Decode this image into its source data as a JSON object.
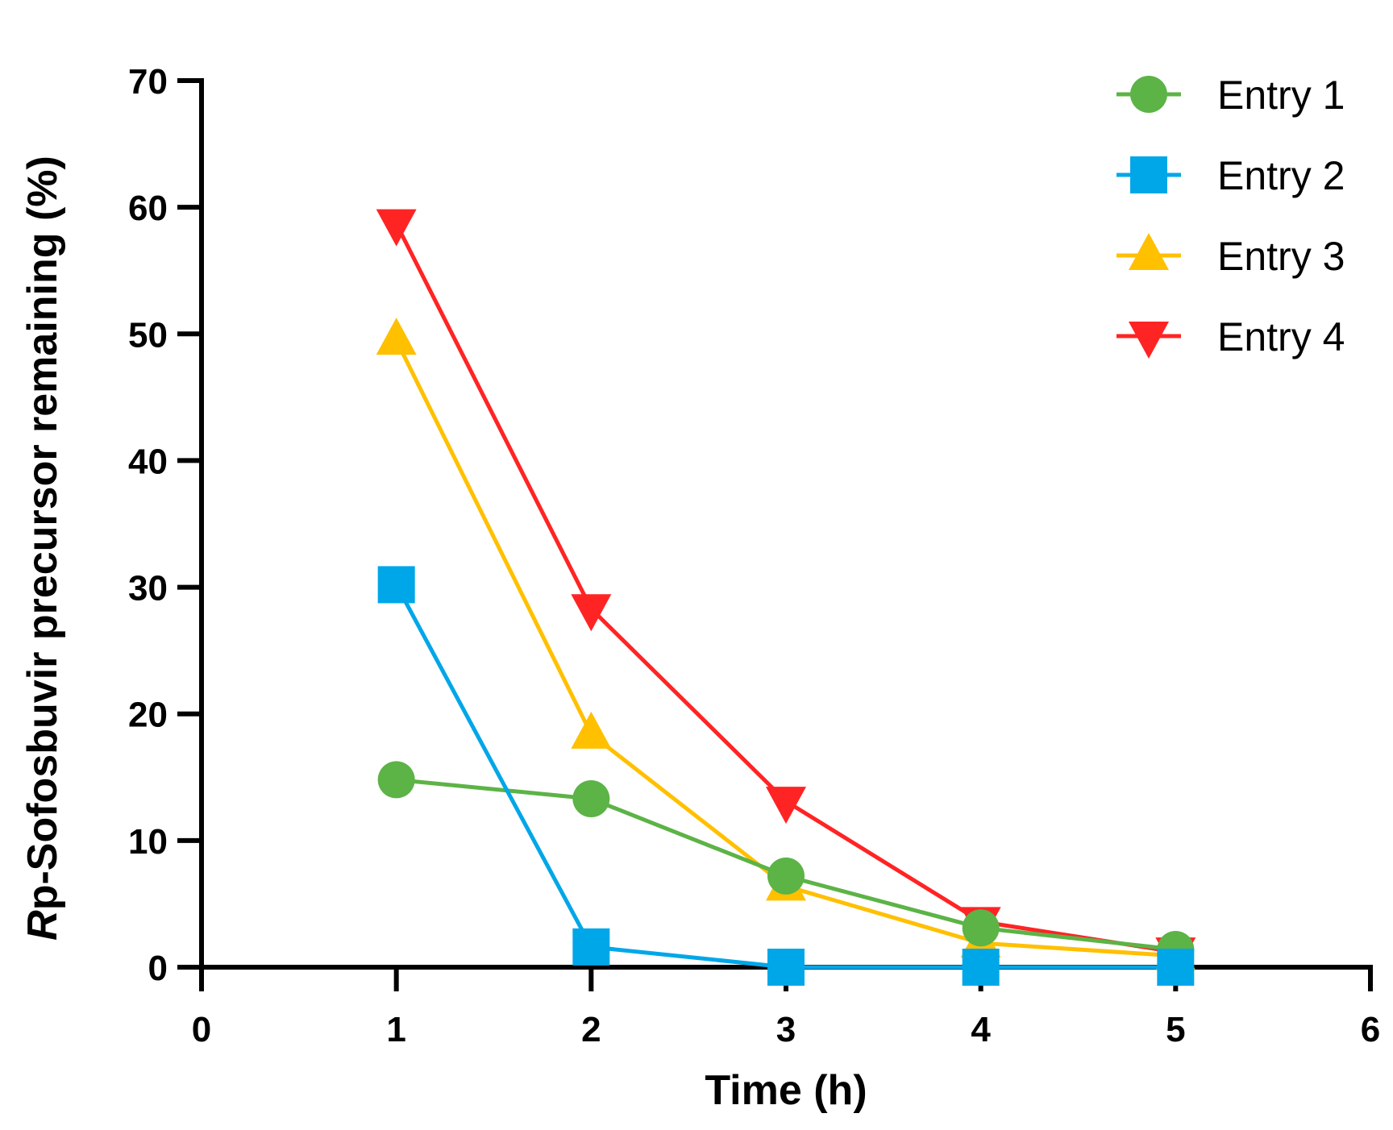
{
  "chart_data": {
    "type": "line",
    "xlabel": "Time (h)",
    "ylabel_italic": "R",
    "ylabel_rest": "p-Sofosbuvir precursor remaining (%)",
    "xlim": [
      0,
      6
    ],
    "ylim": [
      0,
      70
    ],
    "x_ticks": [
      0,
      1,
      2,
      3,
      4,
      5,
      6
    ],
    "y_ticks": [
      0,
      10,
      20,
      30,
      40,
      50,
      60,
      70
    ],
    "x": [
      1,
      2,
      3,
      4,
      5
    ],
    "grid": false,
    "legend_position": "top-right",
    "series": [
      {
        "name": "Entry 1",
        "color": "#5cb346",
        "marker": "circle",
        "values": [
          14.8,
          13.3,
          7.2,
          3.1,
          1.4
        ]
      },
      {
        "name": "Entry 2",
        "color": "#00a7e8",
        "marker": "square",
        "values": [
          30.2,
          1.6,
          0.0,
          0.0,
          0.0
        ]
      },
      {
        "name": "Entry 3",
        "color": "#ffc000",
        "marker": "triangle-up",
        "values": [
          49.5,
          18.4,
          6.4,
          1.9,
          0.9
        ]
      },
      {
        "name": "Entry 4",
        "color": "#ff2424",
        "marker": "triangle-down",
        "values": [
          58.7,
          28.3,
          13.1,
          3.6,
          1.2
        ]
      }
    ]
  }
}
